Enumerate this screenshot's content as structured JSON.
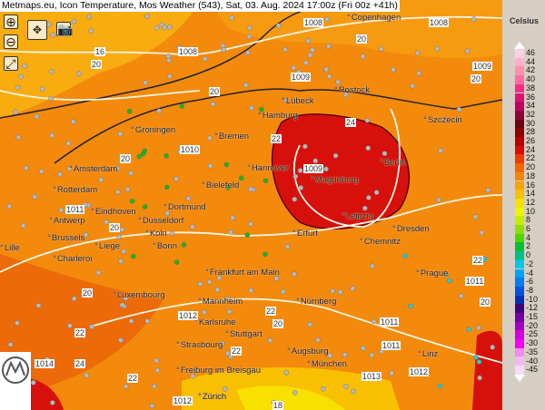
{
  "header": {
    "title": "Metmaps.eu, Icon Temperature, Mos Weather (543), Sat, 03. Aug. 2024 17:00z (Fri 00z +41h)"
  },
  "toolbar": {
    "zoom_in": "zoom-in-icon",
    "zoom_out": "zoom-out-icon",
    "pan": "pan-arrows-icon",
    "camera": "camera-icon",
    "fullscreen": "fullscreen-icon"
  },
  "cities": [
    "Copenhagen",
    "Lübeck",
    "Rostock",
    "Hamburg",
    "Szczecin",
    "Groningen",
    "Bremen",
    "Amsterdam",
    "Hannover",
    "Berlin",
    "Magdeburg",
    "Bielefeld",
    "Rotterdam",
    "Eindhoven",
    "Dortmund",
    "Antwerp",
    "Dusseldorf",
    "Brussels",
    "Koln",
    "Bonn",
    "Liege",
    "Lille",
    "Charleroi",
    "Leipzig",
    "Erfurt",
    "Dresden",
    "Chemnitz",
    "Frankfurt am Main",
    "Prague",
    "Luxembourg",
    "Mannheim",
    "Nürnberg",
    "Karlsruhe",
    "Stuttgart",
    "Strasbourg",
    "Augsburg",
    "München",
    "Freiburg im Breisgau",
    "Zürich",
    "Linz"
  ],
  "contour_labels": [
    "16",
    "1008",
    "1008",
    "1008",
    "1009",
    "20",
    "1009",
    "20",
    "1009",
    "24",
    "22",
    "20",
    "1010",
    "20",
    "20",
    "1011",
    "22",
    "1011",
    "1011",
    "20",
    "20",
    "1012",
    "22",
    "22",
    "1011",
    "1012",
    "1014",
    "24",
    "22",
    "1012",
    "1013",
    "20",
    "22",
    "20",
    "18"
  ],
  "legend": {
    "title": "Celsius",
    "labels": [
      "46",
      "44",
      "42",
      "40",
      "38",
      "36",
      "34",
      "32",
      "30",
      "28",
      "26",
      "24",
      "22",
      "20",
      "18",
      "16",
      "14",
      "12",
      "10",
      "8",
      "6",
      "4",
      "2",
      "0",
      "-2",
      "-4",
      "-6",
      "-8",
      "-10",
      "-12",
      "-15",
      "-20",
      "-25",
      "-30",
      "-35",
      "-40",
      "-45"
    ],
    "colors": [
      "#ffd2de",
      "#ffb0c6",
      "#ff90b0",
      "#ff6aa0",
      "#ff2a88",
      "#e0107a",
      "#c00060",
      "#90003a",
      "#6a0010",
      "#900000",
      "#b80000",
      "#dc0a00",
      "#f03a00",
      "#f86400",
      "#f88400",
      "#f8a200",
      "#f8c200",
      "#f8e000",
      "#f0f400",
      "#c4ec00",
      "#8ee000",
      "#4ed400",
      "#00c030",
      "#00c088",
      "#00c8e8",
      "#00a4f4",
      "#007ef0",
      "#0052e0",
      "#0030b4",
      "#42007e",
      "#7200a4",
      "#a600c4",
      "#d400e0",
      "#f400f4",
      "#f888f4",
      "#f4b8f4",
      "#fad8fa"
    ]
  },
  "map_colors": {
    "warm_orange": "#f38a0c",
    "orange_yellow": "#f9ac10",
    "dark_orange": "#ec6a08",
    "red_hot": "#d8100c",
    "yellow": "#f8d000"
  },
  "logo": "METMAPS"
}
